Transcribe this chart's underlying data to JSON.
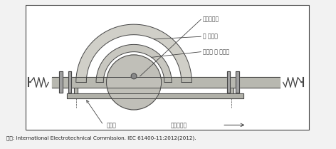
{
  "fig_width": 4.72,
  "fig_height": 2.09,
  "dpi": 100,
  "bg_color": "#f2f2f2",
  "diagram_bg": "#ffffff",
  "label_microphone": "마이크로폰",
  "label_main_windscreen": "주 방풍망",
  "label_optional_windscreen": "선택적 부 방풍망",
  "label_reflector": "반사판",
  "label_fan": "풍력발전기",
  "source_text": "자료: International Electrotechnical Commission. IEC 61400-11:2012(2012).",
  "line_color": "#444444",
  "fill_outer_ring": "#d0cfc8",
  "fill_inner_ring": "#c8c7c0",
  "fill_sphere": "#c0bfb8",
  "fill_bar": "#b8b8b0",
  "fill_plate": "#b0b0a8"
}
